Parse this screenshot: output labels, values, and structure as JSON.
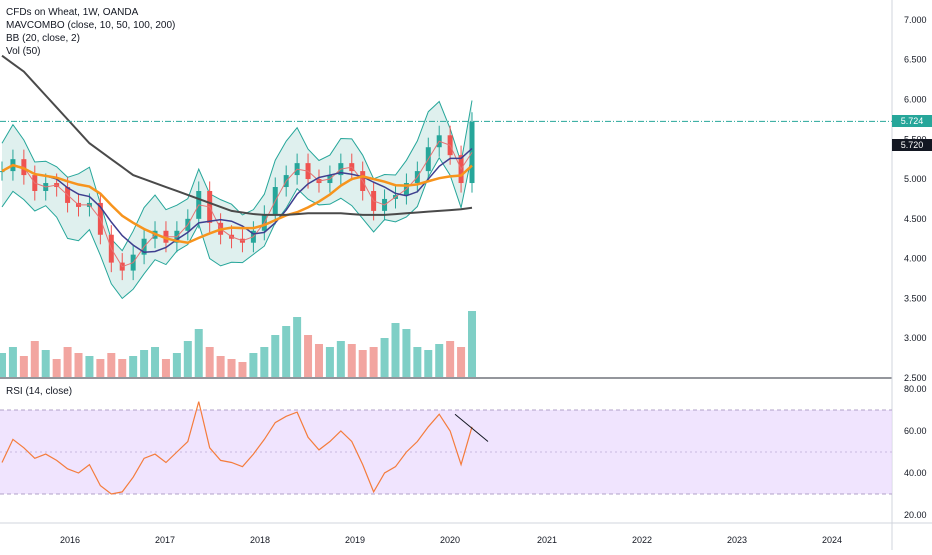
{
  "legend": {
    "symbol": "CFDs on Wheat, 1W, OANDA",
    "mavcombo": "MAVCOMBO (close, 10, 50, 100, 200)",
    "bb": "BB (20, close, 2)",
    "vol": "Vol (50)"
  },
  "rsi_legend": "RSI (14, close)",
  "price_badges": {
    "last_price": "5.724",
    "last_price_color": "#26a69a",
    "marker_price": "5.720",
    "marker_price_color": "#131722"
  },
  "colors": {
    "bb_fill": "#2a9d8f",
    "bb_line": "#26a69a",
    "ma10": "#e57373",
    "ma50": "#3f3f8f",
    "ma100": "#f7941d",
    "ma200": "#4a4a4a",
    "rsi_line": "#f47c3c",
    "rsi_band": "#e9d8fd",
    "vol_up": "#7fcfc6",
    "vol_down": "#f2a5a0",
    "up_candle": "#26a69a",
    "down_candle": "#ef5350"
  },
  "chart_data": [
    {
      "type": "line",
      "title": "CFDs on Wheat, 1W, OANDA",
      "x_ticks": [
        "2016",
        "2017",
        "2018",
        "2019",
        "2020",
        "2021",
        "2022",
        "2023",
        "2024"
      ],
      "y_ticks": [
        "7.000",
        "6.500",
        "6.000",
        "5.500",
        "5.000",
        "4.500",
        "4.000",
        "3.500",
        "3.000",
        "2.500"
      ],
      "ylim": [
        2.5,
        7.25
      ],
      "series": [
        {
          "name": "close",
          "values": [
            5.1,
            5.25,
            5.05,
            4.85,
            4.95,
            4.9,
            4.7,
            4.65,
            4.7,
            4.3,
            3.95,
            3.85,
            4.05,
            4.25,
            4.35,
            4.2,
            4.35,
            4.5,
            4.85,
            4.45,
            4.3,
            4.25,
            4.2,
            4.35,
            4.55,
            4.9,
            5.05,
            5.2,
            5.0,
            4.95,
            5.05,
            5.2,
            5.1,
            4.85,
            4.6,
            4.75,
            4.8,
            4.95,
            5.1,
            5.4,
            5.55,
            5.3,
            4.95,
            5.72
          ]
        },
        {
          "name": "ma200",
          "values": [
            6.55,
            6.45,
            6.35,
            6.2,
            6.05,
            5.9,
            5.75,
            5.6,
            5.45,
            5.35,
            5.25,
            5.15,
            5.05,
            5.0,
            4.95,
            4.9,
            4.85,
            4.8,
            4.75,
            4.7,
            4.65,
            4.6,
            4.58,
            4.56,
            4.55,
            4.55,
            4.55,
            4.56,
            4.57,
            4.57,
            4.57,
            4.57,
            4.56,
            4.55,
            4.55,
            4.55,
            4.56,
            4.57,
            4.58,
            4.59,
            4.6,
            4.61,
            4.62,
            4.64
          ]
        }
      ]
    },
    {
      "type": "line",
      "title": "RSI (14, close)",
      "y_ticks": [
        "80.00",
        "60.00",
        "40.00",
        "20.00"
      ],
      "ylim": [
        20,
        80
      ],
      "bands": [
        30,
        70
      ],
      "values": [
        45,
        56,
        52,
        47,
        49,
        46,
        42,
        40,
        44,
        34,
        30,
        31,
        38,
        47,
        49,
        45,
        50,
        55,
        74,
        52,
        46,
        45,
        43,
        49,
        56,
        64,
        67,
        69,
        57,
        51,
        55,
        60,
        55,
        44,
        31,
        40,
        43,
        50,
        55,
        62,
        68,
        60,
        44,
        62
      ]
    },
    {
      "type": "bar",
      "title": "Vol (50)",
      "values": [
        0.4,
        0.5,
        0.35,
        0.6,
        0.45,
        0.3,
        0.5,
        0.4,
        0.35,
        0.3,
        0.4,
        0.3,
        0.35,
        0.45,
        0.5,
        0.3,
        0.4,
        0.6,
        0.8,
        0.5,
        0.35,
        0.3,
        0.25,
        0.4,
        0.5,
        0.7,
        0.85,
        1.0,
        0.7,
        0.55,
        0.5,
        0.6,
        0.55,
        0.45,
        0.5,
        0.65,
        0.9,
        0.8,
        0.5,
        0.45,
        0.55,
        0.6,
        0.5,
        1.1
      ]
    }
  ]
}
